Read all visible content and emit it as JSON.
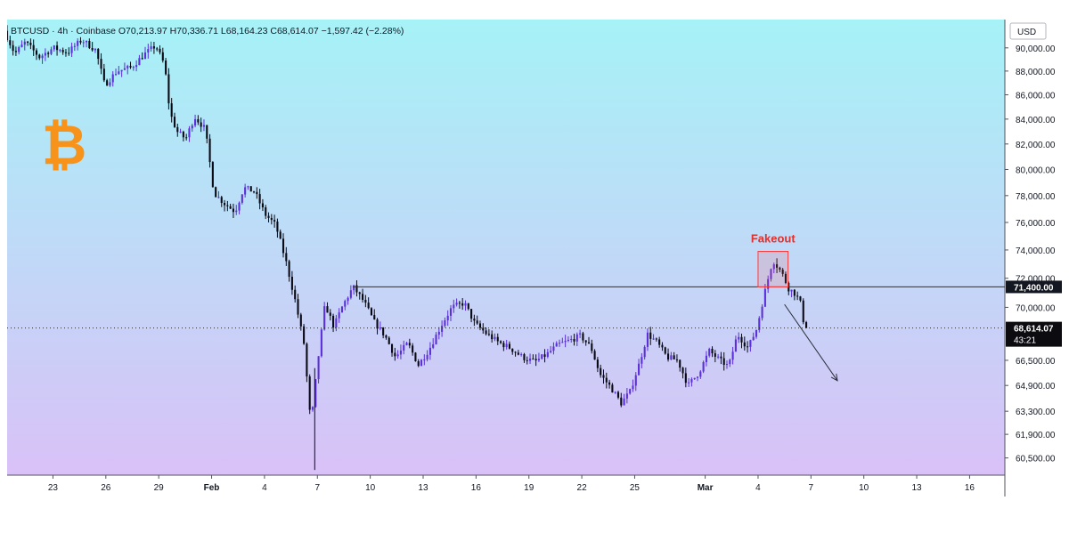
{
  "header": {
    "symbol": "BTCUSD",
    "interval": "4h",
    "exchange": "Coinbase",
    "open_label": "O",
    "open": "70,213.97",
    "high_label": "H",
    "high": "70,336.71",
    "low_label": "L",
    "low": "68,164.23",
    "close_label": "C",
    "close": "68,614.07",
    "change": "−1,597.42 (−2.28%)"
  },
  "currency": "USD",
  "annotation": {
    "text": "Fakeout"
  },
  "price_tags": {
    "level": "71,400.00",
    "last": "68,614.07",
    "countdown": "43:21"
  },
  "logo": {
    "glyph": "₿",
    "icon": "bitcoin-icon"
  },
  "colors": {
    "bg_top": "#a6f2f7",
    "bg_bottom": "#d9c1f7",
    "up_candle": "#5b2fd9",
    "down_candle": "#0a0a14",
    "logo": "#f7931a",
    "fakeout_box": "#ff3b3b",
    "fakeout_text": "#e0312f"
  },
  "chart_data": {
    "type": "candlestick",
    "title": "BTCUSD · 4h · Coinbase",
    "ylabel": "USD",
    "ylim": [
      59500,
      92500
    ],
    "y_scale": "log",
    "y_ticks": [
      "90,000.00",
      "88,000.00",
      "86,000.00",
      "84,000.00",
      "82,000.00",
      "80,000.00",
      "78,000.00",
      "76,000.00",
      "74,000.00",
      "72,000.00",
      "70,000.00",
      "66,500.00",
      "64,900.00",
      "63,300.00",
      "61,900.00",
      "60,500.00"
    ],
    "y_tick_values": [
      90000,
      88000,
      86000,
      84000,
      82000,
      80000,
      78000,
      76000,
      74000,
      72000,
      70000,
      66500,
      64900,
      63300,
      61900,
      60500
    ],
    "x_ticks": [
      "23",
      "26",
      "29",
      "Feb",
      "4",
      "7",
      "10",
      "13",
      "16",
      "19",
      "22",
      "25",
      "Mar",
      "4",
      "7",
      "10",
      "13",
      "16"
    ],
    "x_tick_days": [
      -9,
      -6,
      -3,
      0,
      3,
      6,
      9,
      12,
      15,
      18,
      21,
      24,
      28,
      31,
      34,
      37,
      40,
      43
    ],
    "xlim_days": [
      -11.6,
      45
    ],
    "support_level": 71400,
    "last_price": 68614.07,
    "fakeout_box": {
      "day_start": 31.0,
      "day_end": 32.7,
      "price_low": 71400,
      "price_high": 73900
    },
    "projection_arrow": {
      "from": {
        "day": 32.5,
        "price": 70200
      },
      "to": {
        "day": 35.5,
        "price": 65200
      }
    },
    "waypoints": [
      [
        -11.6,
        91500
      ],
      [
        -11.0,
        89500
      ],
      [
        -10.4,
        90500
      ],
      [
        -9.6,
        89200
      ],
      [
        -8.8,
        90000
      ],
      [
        -8.0,
        89600
      ],
      [
        -7.2,
        90700
      ],
      [
        -6.4,
        89800
      ],
      [
        -5.9,
        86800
      ],
      [
        -5.2,
        88000
      ],
      [
        -4.4,
        88300
      ],
      [
        -3.6,
        89500
      ],
      [
        -3.0,
        90200
      ],
      [
        -2.5,
        88500
      ],
      [
        -2.2,
        84500
      ],
      [
        -1.8,
        83000
      ],
      [
        -1.3,
        82400
      ],
      [
        -0.8,
        84200
      ],
      [
        -0.2,
        83200
      ],
      [
        0.3,
        78200
      ],
      [
        0.9,
        77400
      ],
      [
        1.5,
        76800
      ],
      [
        2.0,
        78600
      ],
      [
        2.6,
        78300
      ],
      [
        3.2,
        76600
      ],
      [
        3.8,
        75800
      ],
      [
        4.4,
        73100
      ],
      [
        4.9,
        70500
      ],
      [
        5.4,
        67600
      ],
      [
        5.8,
        62400
      ],
      [
        6.2,
        66500
      ],
      [
        6.6,
        70200
      ],
      [
        7.1,
        68700
      ],
      [
        7.6,
        70100
      ],
      [
        8.2,
        71400
      ],
      [
        8.8,
        70400
      ],
      [
        9.4,
        69000
      ],
      [
        10.0,
        68100
      ],
      [
        10.6,
        66700
      ],
      [
        11.3,
        67600
      ],
      [
        11.9,
        66200
      ],
      [
        12.5,
        67200
      ],
      [
        13.2,
        68800
      ],
      [
        13.8,
        70000
      ],
      [
        14.5,
        70300
      ],
      [
        15.1,
        68900
      ],
      [
        15.8,
        68200
      ],
      [
        16.4,
        67700
      ],
      [
        17.1,
        67300
      ],
      [
        17.8,
        66700
      ],
      [
        18.5,
        66400
      ],
      [
        19.2,
        66900
      ],
      [
        19.8,
        67500
      ],
      [
        20.5,
        67800
      ],
      [
        21.1,
        68100
      ],
      [
        21.7,
        67300
      ],
      [
        22.2,
        65600
      ],
      [
        22.8,
        64800
      ],
      [
        23.4,
        63800
      ],
      [
        23.9,
        64500
      ],
      [
        24.4,
        66200
      ],
      [
        24.9,
        68200
      ],
      [
        25.4,
        67700
      ],
      [
        26.0,
        66700
      ],
      [
        26.6,
        66500
      ],
      [
        27.2,
        64900
      ],
      [
        27.8,
        65700
      ],
      [
        28.4,
        67100
      ],
      [
        29.0,
        66500
      ],
      [
        29.5,
        66100
      ],
      [
        30.0,
        68200
      ],
      [
        30.6,
        67300
      ],
      [
        31.1,
        68600
      ],
      [
        31.5,
        70800
      ],
      [
        32.0,
        73300
      ],
      [
        32.5,
        72400
      ],
      [
        32.9,
        71300
      ],
      [
        33.3,
        70900
      ],
      [
        33.6,
        70200
      ],
      [
        33.8,
        68614
      ]
    ]
  }
}
